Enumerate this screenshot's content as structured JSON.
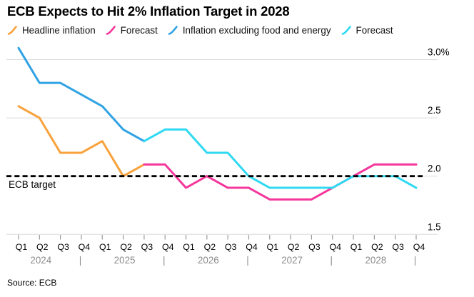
{
  "title": "ECB Expects to Hit 2% Inflation Target in 2028",
  "source": "Source: ECB",
  "chart_data": {
    "type": "line",
    "title": "ECB Expects to Hit 2% Inflation Target in 2028",
    "legend_position": "top",
    "grid": "horizontal",
    "ylim": [
      1.5,
      3.1
    ],
    "y_ticks": [
      {
        "value": 3.0,
        "label": "3.0%"
      },
      {
        "value": 2.5,
        "label": "2.5"
      },
      {
        "value": 2.0,
        "label": "2.0"
      },
      {
        "value": 1.5,
        "label": "1.5"
      }
    ],
    "x_axis": {
      "quarter_labels": [
        "Q1",
        "Q2",
        "Q3",
        "Q4",
        "Q1",
        "Q2",
        "Q3",
        "Q4",
        "Q1",
        "Q2",
        "Q3",
        "Q4",
        "Q1",
        "Q2",
        "Q3",
        "Q4",
        "Q1",
        "Q2",
        "Q3",
        "Q4"
      ],
      "year_labels": [
        "2024",
        "2025",
        "2026",
        "2027",
        "2028"
      ],
      "separator": "|"
    },
    "target_line": {
      "value": 2.0,
      "label": "ECB target",
      "color": "#000000",
      "style": "dashed"
    },
    "series": [
      {
        "key": "headline-inflation",
        "name": "Headline inflation",
        "color": "#F8A23B",
        "start_index": 0,
        "values": [
          2.6,
          2.5,
          2.2,
          2.2,
          2.3,
          2.0,
          2.1
        ]
      },
      {
        "key": "headline-forecast",
        "name": "Forecast",
        "color": "#F5369B",
        "start_index": 6,
        "values": [
          2.1,
          2.1,
          1.9,
          2.0,
          1.9,
          1.9,
          1.8,
          1.8,
          1.8,
          1.9,
          2.0,
          2.1,
          2.1,
          2.1
        ]
      },
      {
        "key": "core-inflation",
        "name": "Inflation excluding food and energy",
        "color": "#30A3E4",
        "start_index": 0,
        "values": [
          3.1,
          2.8,
          2.8,
          2.7,
          2.6,
          2.4,
          2.3
        ]
      },
      {
        "key": "core-forecast",
        "name": "Forecast",
        "color": "#2FD9F2",
        "start_index": 6,
        "values": [
          2.3,
          2.4,
          2.4,
          2.2,
          2.2,
          2.0,
          1.9,
          1.9,
          1.9,
          1.9,
          2.0,
          2.0,
          2.0,
          1.9
        ]
      }
    ]
  }
}
